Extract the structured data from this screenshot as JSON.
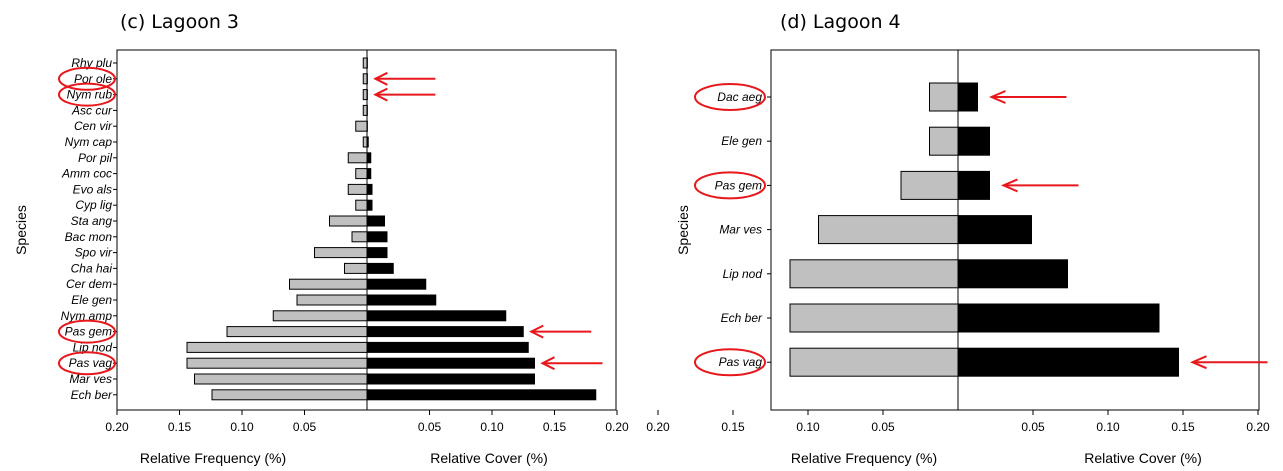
{
  "chart_data": [
    {
      "type": "bar",
      "orientation": "horizontal-back-to-back",
      "title": "(c) Lagoon 3",
      "ylabel": "Species",
      "xlabel_left": "Relative Frequency (%)",
      "xlabel_right": "Relative Cover (%)",
      "left_ticks": [
        "0.20",
        "0.15",
        "0.10",
        "0.05"
      ],
      "right_ticks": [
        "0.05",
        "0.10",
        "0.15",
        "0.20"
      ],
      "xlim": [
        0,
        0.2
      ],
      "categories": [
        "Rhy plu",
        "Por ole",
        "Nym rub",
        "Asc cur",
        "Cen vir",
        "Nym cap",
        "Por pil",
        "Amm coc",
        "Evo als",
        "Cyp lig",
        "Sta ang",
        "Bac mon",
        "Spo vir",
        "Cha hai",
        "Cer dem",
        "Ele gen",
        "Nym amp",
        "Pas gem",
        "Lip nod",
        "Pas vag",
        "Mar ves",
        "Ech ber"
      ],
      "series": [
        {
          "name": "Relative Frequency (%)",
          "color": "#c0c0c0",
          "values": [
            0.003,
            0.003,
            0.003,
            0.003,
            0.009,
            0.003,
            0.015,
            0.009,
            0.015,
            0.009,
            0.03,
            0.012,
            0.042,
            0.018,
            0.062,
            0.056,
            0.075,
            0.112,
            0.144,
            0.144,
            0.138,
            0.124
          ]
        },
        {
          "name": "Relative Cover (%)",
          "color": "#000000",
          "values": [
            0.0003,
            0.0003,
            0.0003,
            0.0003,
            0.0003,
            0.001,
            0.003,
            0.003,
            0.004,
            0.004,
            0.014,
            0.016,
            0.016,
            0.021,
            0.047,
            0.055,
            0.111,
            0.125,
            0.129,
            0.134,
            0.134,
            0.183
          ]
        }
      ],
      "highlighted": [
        "Por ole",
        "Nym rub",
        "Pas gem",
        "Pas vag"
      ],
      "highlight_color": "#e8171b"
    },
    {
      "type": "bar",
      "orientation": "horizontal-back-to-back",
      "title": "(d) Lagoon 4",
      "ylabel": "Species",
      "xlabel_left": "Relative Frequency (%)",
      "xlabel_right": "Relative Cover (%)",
      "left_ticks": [
        "0.20",
        "0.15",
        "0.10",
        "0.05"
      ],
      "right_ticks": [
        "0.05",
        "0.10",
        "0.15",
        "0.20"
      ],
      "xlim": [
        0,
        0.2
      ],
      "categories": [
        "Dac aeg",
        "Ele gen",
        "Pas gem",
        "Mar ves",
        "Lip nod",
        "Ech ber",
        "Pas vag"
      ],
      "series": [
        {
          "name": "Relative Frequency (%)",
          "color": "#c0c0c0",
          "values": [
            0.019,
            0.019,
            0.038,
            0.093,
            0.112,
            0.112,
            0.112
          ]
        },
        {
          "name": "Relative Cover (%)",
          "color": "#000000",
          "values": [
            0.013,
            0.021,
            0.021,
            0.049,
            0.073,
            0.134,
            0.147
          ]
        }
      ],
      "highlighted": [
        "Dac aeg",
        "Pas gem",
        "Pas vag"
      ],
      "highlight_color": "#e8171b"
    }
  ]
}
